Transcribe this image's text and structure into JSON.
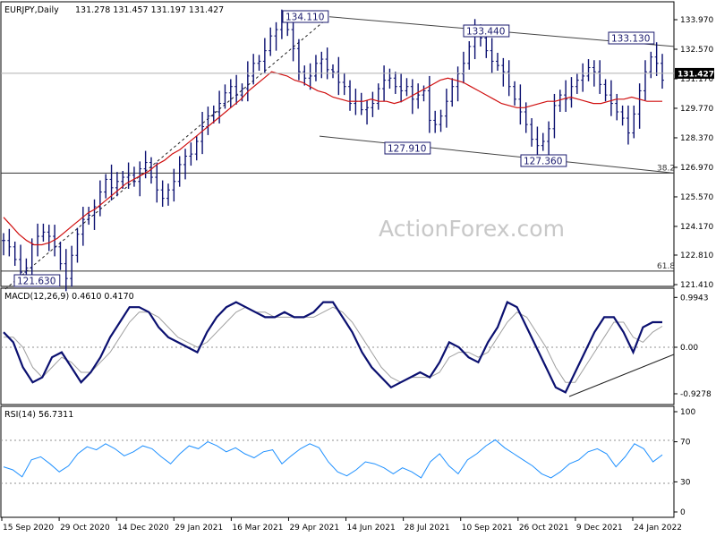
{
  "watermark": "ActionForex.com",
  "colors": {
    "bar": "#0b1070",
    "ma": "#d01010",
    "macd": "#0b1070",
    "signal": "#a0a0a0",
    "rsi": "#1e90ff",
    "trend": "#444444",
    "grid_dash": "#909090"
  },
  "chart_data": [
    {
      "type": "ohlc",
      "title": "EURJPY,Daily",
      "ohlc_text": "131.278 131.457 131.197 131.427",
      "last_price_label": "131.427",
      "last_price": 131.427,
      "y_ticks": [
        "133.970",
        "132.570",
        "131.170",
        "129.770",
        "128.370",
        "126.970",
        "125.570",
        "124.170",
        "122.810",
        "121.410"
      ],
      "y_values": [
        133.97,
        132.57,
        131.17,
        129.77,
        128.37,
        126.97,
        125.57,
        124.17,
        122.81,
        121.41
      ],
      "ylim": [
        121.41,
        134.38
      ],
      "swing_labels": [
        "134.110",
        "133.440",
        "133.130",
        "127.910",
        "127.360",
        "121.630"
      ],
      "swing_values": [
        134.11,
        133.44,
        133.13,
        127.91,
        127.36,
        121.63
      ],
      "fib_levels": [
        {
          "label": "38.2",
          "value": 126.7
        },
        {
          "label": "61.8",
          "value": 122.05
        }
      ],
      "close_series": [
        123.5,
        123.2,
        122.6,
        122.0,
        122.2,
        123.3,
        123.7,
        123.9,
        123.7,
        123.2,
        122.4,
        121.7,
        122.8,
        123.8,
        124.5,
        124.7,
        125.1,
        125.8,
        126.4,
        126.0,
        126.3,
        126.5,
        126.6,
        126.3,
        126.9,
        127.2,
        126.5,
        125.9,
        125.5,
        125.9,
        126.3,
        127.1,
        127.5,
        127.6,
        128.2,
        128.9,
        129.4,
        129.6,
        130.0,
        130.5,
        130.8,
        130.4,
        130.7,
        131.3,
        131.9,
        132.0,
        132.5,
        133.2,
        133.5,
        133.9,
        133.5,
        132.6,
        131.5,
        131.2,
        131.3,
        131.9,
        132.1,
        131.6,
        131.5,
        131.0,
        130.8,
        130.0,
        130.1,
        129.7,
        129.8,
        130.0,
        130.7,
        131.1,
        131.2,
        130.8,
        130.6,
        130.8,
        130.2,
        130.4,
        130.6,
        129.2,
        129.0,
        129.4,
        130.1,
        130.8,
        131.4,
        131.9,
        132.7,
        133.3,
        133.1,
        132.5,
        132.0,
        131.8,
        131.5,
        130.8,
        130.2,
        129.6,
        129.0,
        128.3,
        128.0,
        128.2,
        128.8,
        129.9,
        130.4,
        130.2,
        130.8,
        131.1,
        131.3,
        131.7,
        131.5,
        130.9,
        130.4,
        130.0,
        129.6,
        129.3,
        128.6,
        129.5,
        130.6,
        131.5,
        132.2,
        131.9,
        131.1
      ],
      "ma_series": [
        124.6,
        124.2,
        123.8,
        123.5,
        123.3,
        123.3,
        123.4,
        123.6,
        123.9,
        124.2,
        124.5,
        124.8,
        125.0,
        125.3,
        125.6,
        125.9,
        126.2,
        126.4,
        126.6,
        126.8,
        127.1,
        127.3,
        127.6,
        127.8,
        128.1,
        128.4,
        128.7,
        129.0,
        129.3,
        129.6,
        129.9,
        130.2,
        130.6,
        130.9,
        131.2,
        131.5,
        131.4,
        131.3,
        131.1,
        131.0,
        130.8,
        130.6,
        130.5,
        130.3,
        130.2,
        130.1,
        130.1,
        130.1,
        130.2,
        130.1,
        130.1,
        130.0,
        130.1,
        130.3,
        130.5,
        130.7,
        130.9,
        131.1,
        131.2,
        131.1,
        131.0,
        130.8,
        130.6,
        130.4,
        130.2,
        130.0,
        129.9,
        129.8,
        129.8,
        129.9,
        130.0,
        130.1,
        130.1,
        130.2,
        130.3,
        130.2,
        130.1,
        130.0,
        130.0,
        130.1,
        130.2,
        130.2,
        130.3,
        130.2,
        130.1,
        130.1,
        130.1
      ],
      "x_tick_labels": [
        "15 Sep 2020",
        "29 Oct 2020",
        "14 Dec 2020",
        "29 Jan 2021",
        "16 Mar 2021",
        "29 Apr 2021",
        "14 Jun 2021",
        "28 Jul 2021",
        "10 Sep 2021",
        "26 Oct 2021",
        "9 Dec 2021",
        "24 Jan 2022"
      ]
    },
    {
      "type": "line",
      "title": "MACD(12,26,9) 0.4610 0.4170",
      "y_ticks": [
        "0.9943",
        "0.00",
        "-0.9278"
      ],
      "y_values": [
        0.9943,
        0.0,
        -0.9278
      ],
      "ylim": [
        -1.1,
        1.15
      ],
      "series": [
        {
          "values": [
            0.3,
            0.1,
            -0.4,
            -0.7,
            -0.6,
            -0.2,
            -0.1,
            -0.4,
            -0.7,
            -0.5,
            -0.2,
            0.2,
            0.5,
            0.8,
            0.8,
            0.7,
            0.4,
            0.2,
            0.1,
            0.0,
            -0.1,
            0.3,
            0.6,
            0.8,
            0.9,
            0.8,
            0.7,
            0.6,
            0.6,
            0.7,
            0.6,
            0.6,
            0.7,
            0.9,
            0.9,
            0.6,
            0.3,
            -0.1,
            -0.4,
            -0.6,
            -0.8,
            -0.7,
            -0.6,
            -0.5,
            -0.6,
            -0.3,
            0.1,
            0.0,
            -0.2,
            -0.3,
            0.1,
            0.4,
            0.9,
            0.8,
            0.4,
            0.0,
            -0.4,
            -0.8,
            -0.9,
            -0.5,
            -0.1,
            0.3,
            0.6,
            0.6,
            0.3,
            -0.1,
            0.4,
            0.5,
            0.5
          ]
        },
        {
          "values": [
            0.2,
            0.2,
            0.0,
            -0.4,
            -0.6,
            -0.4,
            -0.2,
            -0.3,
            -0.5,
            -0.5,
            -0.3,
            -0.1,
            0.2,
            0.5,
            0.7,
            0.7,
            0.6,
            0.4,
            0.2,
            0.1,
            0.0,
            0.1,
            0.3,
            0.5,
            0.7,
            0.8,
            0.7,
            0.7,
            0.6,
            0.6,
            0.6,
            0.6,
            0.6,
            0.7,
            0.8,
            0.7,
            0.5,
            0.2,
            -0.1,
            -0.4,
            -0.6,
            -0.7,
            -0.6,
            -0.6,
            -0.6,
            -0.5,
            -0.2,
            -0.1,
            -0.1,
            -0.2,
            -0.1,
            0.2,
            0.5,
            0.7,
            0.6,
            0.3,
            0.0,
            -0.4,
            -0.7,
            -0.7,
            -0.4,
            -0.1,
            0.2,
            0.5,
            0.5,
            0.2,
            0.1,
            0.3,
            0.42
          ]
        }
      ]
    },
    {
      "type": "line",
      "title": "RSI(14) 56.7311",
      "y_ticks": [
        "100",
        "70",
        "30",
        "0"
      ],
      "y_values": [
        100,
        70,
        30,
        0
      ],
      "ylim": [
        0,
        100
      ],
      "series": [
        {
          "values": [
            45,
            42,
            35,
            52,
            55,
            48,
            40,
            46,
            58,
            65,
            62,
            68,
            63,
            56,
            60,
            66,
            63,
            55,
            48,
            58,
            66,
            63,
            70,
            66,
            60,
            64,
            58,
            54,
            60,
            62,
            48,
            56,
            63,
            68,
            64,
            50,
            40,
            36,
            42,
            50,
            48,
            44,
            38,
            44,
            40,
            34,
            50,
            58,
            46,
            38,
            52,
            58,
            66,
            72,
            64,
            58,
            52,
            46,
            38,
            34,
            40,
            48,
            52,
            60,
            63,
            58,
            45,
            55,
            68,
            63,
            50,
            57
          ]
        }
      ]
    }
  ]
}
